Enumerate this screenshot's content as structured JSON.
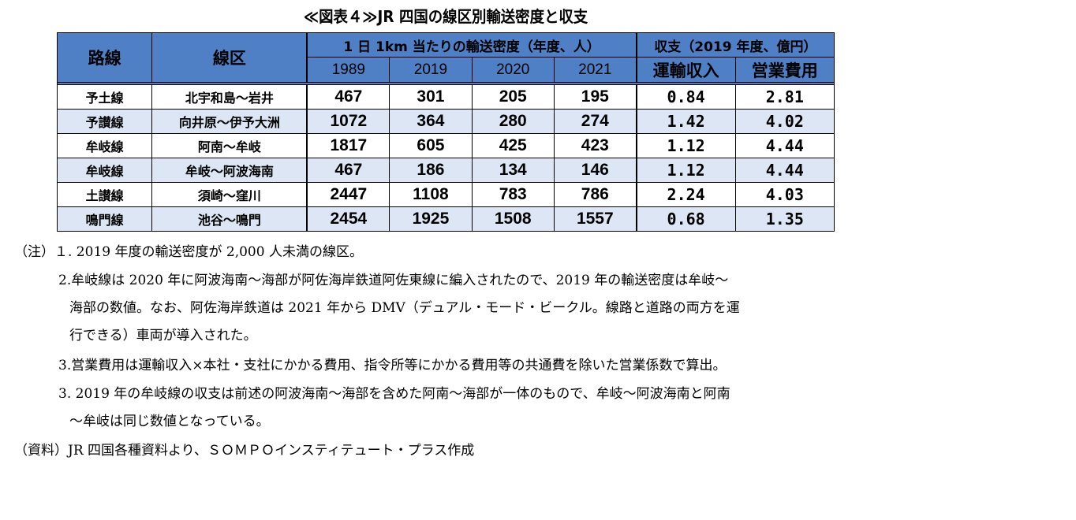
{
  "title": "≪図表４≫JR 四国の線区別輸送密度と収支",
  "table": {
    "header": {
      "route": "路線",
      "section": "線区",
      "density_group": "1 日 1km 当たりの輸送密度（年度、人）",
      "finance_group": "収支（2019 年度、億円）",
      "years": [
        "1989",
        "2019",
        "2020",
        "2021"
      ],
      "revenue": "運輸収入",
      "expenses": "営業費用"
    },
    "rows": [
      {
        "route": "予土線",
        "section": "北宇和島～岩井",
        "d1989": "467",
        "d2019": "301",
        "d2020": "205",
        "d2021": "195",
        "revenue": "0.84",
        "expenses": "2.81"
      },
      {
        "route": "予讃線",
        "section": "向井原～伊予大洲",
        "d1989": "1072",
        "d2019": "364",
        "d2020": "280",
        "d2021": "274",
        "revenue": "1.42",
        "expenses": "4.02"
      },
      {
        "route": "牟岐線",
        "section": "阿南～牟岐",
        "d1989": "1817",
        "d2019": "605",
        "d2020": "425",
        "d2021": "423",
        "revenue": "1.12",
        "expenses": "4.44"
      },
      {
        "route": "牟岐線",
        "section": "牟岐～阿波海南",
        "d1989": "467",
        "d2019": "186",
        "d2020": "134",
        "d2021": "146",
        "revenue": "1.12",
        "expenses": "4.44"
      },
      {
        "route": "土讃線",
        "section": "須崎～窪川",
        "d1989": "2447",
        "d2019": "1108",
        "d2020": "783",
        "d2021": "786",
        "revenue": "2.24",
        "expenses": "4.03"
      },
      {
        "route": "鳴門線",
        "section": "池谷～鳴門",
        "d1989": "2454",
        "d2019": "1925",
        "d2020": "1508",
        "d2021": "1557",
        "revenue": "0.68",
        "expenses": "1.35"
      }
    ]
  },
  "notes": {
    "n1": "（注）１. 2019 年度の輸送密度が 2,000 人未満の線区。",
    "n2a": "2.牟岐線は 2020 年に阿波海南～海部が阿佐海岸鉄道阿佐東線に編入されたので、2019 年の輸送密度は牟岐～",
    "n2b": "海部の数値。なお、阿佐海岸鉄道は 2021 年から DMV（デュアル・モード・ビークル。線路と道路の両方を運",
    "n2c": "行できる）車両が導入された。",
    "n3": "3.営業費用は運輸収入×本社・支社にかかる費用、指令所等にかかる費用等の共通費を除いた営業係数で算出。",
    "n4a": "3. 2019 年の牟岐線の収支は前述の阿波海南～海部を含めた阿南～海部が一体のもので、牟岐～阿波海南と阿南",
    "n4b": "～牟岐は同じ数値となっている。",
    "source": "（資料）JR 四国各種資料より、ＳＯＭＰＯインスティテュート・プラス作成"
  }
}
